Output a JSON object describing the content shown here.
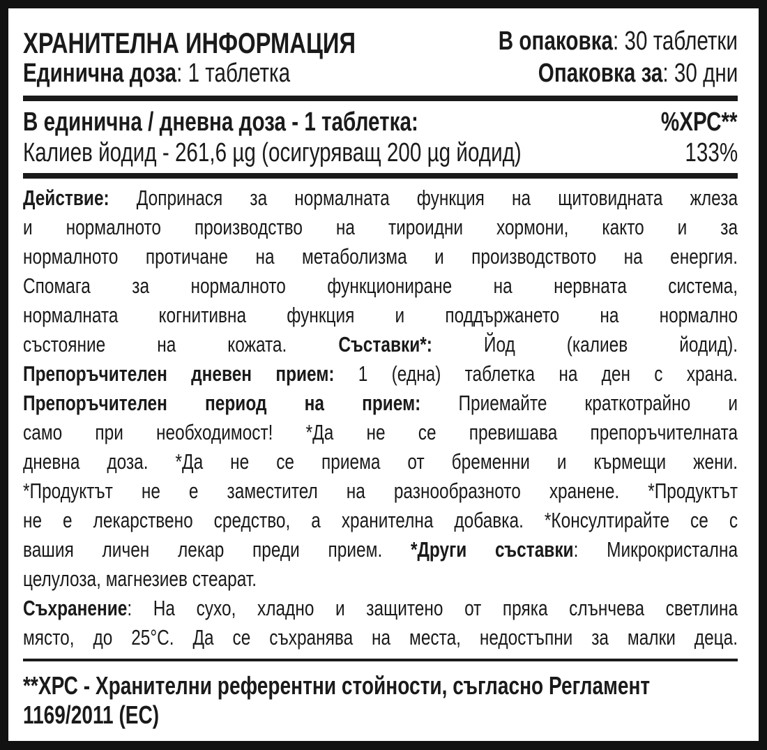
{
  "header": {
    "title": "ХРАНИТЕЛНА ИНФОРМАЦИЯ",
    "package_label": "В опаковка",
    "package_value": ": 30 таблетки",
    "dose_label": "Единична доза",
    "dose_value": ": 1 таблетка",
    "duration_label": "Опаковка за",
    "duration_value": ": 30 дни"
  },
  "table": {
    "heading": "В единична / дневна доза - 1 таблетка:",
    "column": "%ХРС**",
    "rows": [
      {
        "name": "Калиев йодид - 261,6 µg (осигуряващ 200 µg йодид)",
        "value": "133%"
      }
    ]
  },
  "body": {
    "lines": [
      [
        "Действие:",
        " Допринася за нормалната функция на щитовидната жлеза"
      ],
      [
        "и нормалното производство на тироидни хормони, както и за"
      ],
      [
        "нормалното протичане на метаболизма и производството на енергия."
      ],
      [
        "Спомага за нормалното функциониране на нервната система,"
      ],
      [
        "нормалната когнитивна функция и поддържането на нормално"
      ],
      [
        "състояние на кожата. ",
        "Съставки*:",
        " Йод (калиев йодид)."
      ],
      [
        "Препоръчителен дневен прием:",
        " 1 (една) таблетка на ден с храна."
      ],
      [
        "Препоръчителен период на прием:",
        " Приемайте краткотрайно и"
      ],
      [
        "само при необходимост! *Да не се превишава препоръчителната"
      ],
      [
        "дневна доза. *Да не се приема от бременни и кърмещи жени."
      ],
      [
        "*Продуктът не е заместител на разнообразното хранене. *Продуктът"
      ],
      [
        "не е лекарствено средство, а хранителна добавка.  *Консултирайте се с"
      ],
      [
        "вашия личен лекар преди прием. ",
        "*Други съставки",
        ": Микрокристална"
      ],
      [
        "целулоза, магнезиев стеарат."
      ],
      [
        "Съхранение",
        ": На сухо, хладно и защитено от пряка слънчева светлина"
      ],
      [
        "място, до 25°C. Да се съхранява на места, недостъпни за малки деца."
      ]
    ]
  },
  "footer": {
    "line1": "**ХРС - Хранителни референтни стойности, съгласно Регламент",
    "line2": "1169/2011 (ЕС)"
  }
}
